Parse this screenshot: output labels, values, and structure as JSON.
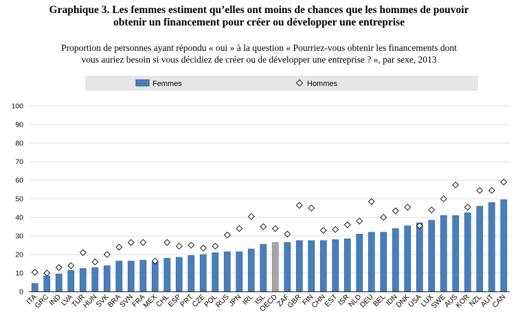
{
  "title": {
    "line1": "Graphique 3. Les femmes estiment qu’elles ont moins de chances que les hommes de pouvoir",
    "line2": "obtenir un financement pour créer ou développer une entreprise"
  },
  "subtitle": {
    "line1": "Proportion de personnes ayant répondu « oui » à la question « Pourriez-vous obtenir les financements dont",
    "line2": "vous auriez besoin si vous décidiez de créer ou de développer une entreprise ? », par sexe, 2013"
  },
  "colors": {
    "femmes_bar": "#4a7ebb",
    "femmes_bar_stroke": "#2f5c93",
    "oecd_bar": "#a6a6a6",
    "hommes_marker": "#ffffff",
    "legend_band": "#e6e6e6"
  },
  "chart_data": {
    "type": "bar",
    "title": "",
    "xlabel": "",
    "ylabel": "",
    "ylim": [
      0,
      100
    ],
    "yticks": [
      0,
      10,
      20,
      30,
      40,
      50,
      60,
      70,
      80,
      90,
      100
    ],
    "legend_position": "top",
    "grid": true,
    "highlight_category": "OECD",
    "categories": [
      "ITA",
      "GRC",
      "IND",
      "LVA",
      "TUR",
      "HUN",
      "SVK",
      "BRA",
      "SVN",
      "FRA",
      "MEX",
      "CHL",
      "ESP",
      "PRT",
      "CZE",
      "POL",
      "RUS",
      "JPN",
      "IRL",
      "ISL",
      "OECD",
      "ZAF",
      "GBR",
      "FIN",
      "CHN",
      "EST",
      "ISR",
      "NLD",
      "DEU",
      "BEL",
      "IDN",
      "DNK",
      "USA",
      "LUX",
      "SWE",
      "AUS",
      "KOR",
      "NZL",
      "AUT",
      "CAN"
    ],
    "series": [
      {
        "name": "Femmes",
        "kind": "bar",
        "values": [
          4.5,
          8.5,
          9.5,
          11.5,
          12.5,
          13,
          14,
          16.5,
          16.5,
          17,
          16,
          18,
          18.5,
          19.5,
          20,
          21,
          21.5,
          21.5,
          23,
          25.5,
          26.5,
          26.5,
          27.5,
          27.5,
          27.5,
          28,
          28.5,
          31,
          32,
          32,
          34,
          35.5,
          37,
          38.5,
          41,
          41,
          42.5,
          46,
          48,
          49.5
        ]
      },
      {
        "name": "Hommes",
        "kind": "marker",
        "values": [
          10.5,
          10,
          13,
          14,
          21,
          16,
          20,
          24,
          26.5,
          26.5,
          16.5,
          26.5,
          24.5,
          25,
          23.5,
          24.5,
          30.5,
          34,
          40.5,
          35,
          34,
          31,
          46.5,
          45,
          33,
          33.5,
          36,
          38,
          48.5,
          40,
          43.5,
          45.5,
          35.5,
          44,
          50,
          57.5,
          45.5,
          54.5,
          54.5,
          59
        ]
      }
    ]
  }
}
